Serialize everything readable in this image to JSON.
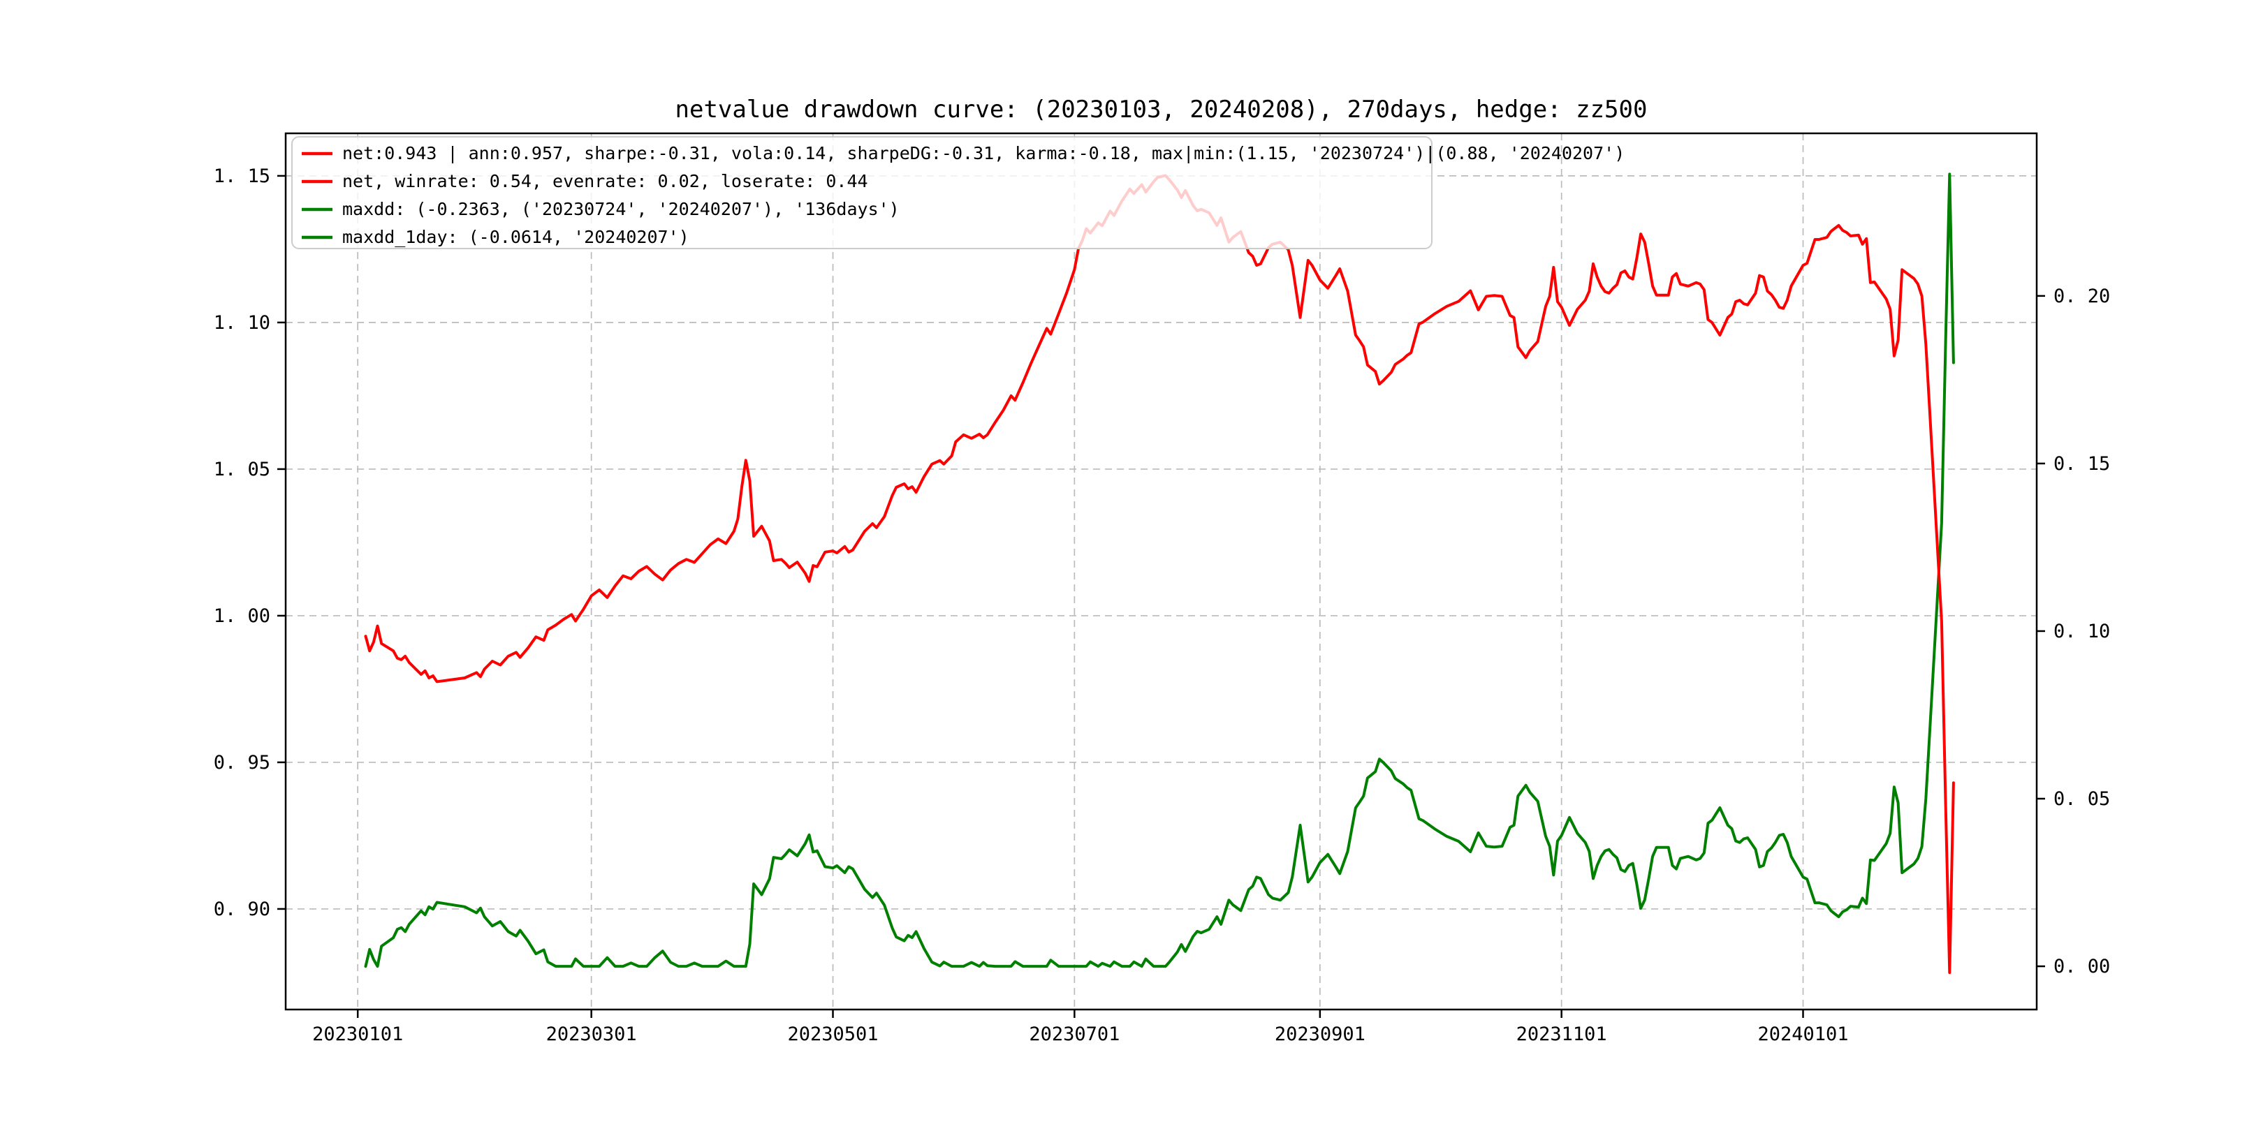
{
  "figure": {
    "title": "netvalue drawdown curve: (20230103, 20240208), 270days, hedge: zz500",
    "background": "#ffffff"
  },
  "colors": {
    "net_line": "#ff0000",
    "drawdown_line": "#008000",
    "grid": "#bbbbbb",
    "spine": "#000000",
    "legend_border": "#cccccc",
    "legend_bg_rgba": "rgba(255,255,255,0.8)"
  },
  "legend": {
    "items": [
      {
        "color": "#ff0000",
        "label": "net:0.943 | ann:0.957, sharpe:-0.31, vola:0.14, sharpeDG:-0.31, karma:-0.18, max|min:(1.15, '20230724')|(0.88, '20240207')"
      },
      {
        "color": "#ff0000",
        "label": "net, winrate: 0.54, evenrate: 0.02, loserate: 0.44"
      },
      {
        "color": "#008000",
        "label": "maxdd: (-0.2363, ('20230724', '20240207'), '136days')"
      },
      {
        "color": "#008000",
        "label": "maxdd_1day: (-0.0614, '20240207')"
      }
    ]
  },
  "axes": {
    "x": {
      "tick_labels": [
        "20230101",
        "20230301",
        "20230501",
        "20230701",
        "20230901",
        "20231101",
        "20240101"
      ],
      "tick_days": [
        0,
        59,
        120,
        181,
        243,
        304,
        365
      ],
      "lim_days": [
        -18.2,
        424.0
      ],
      "unit": "days since 2023-01-01"
    },
    "left": {
      "ticks": [
        1.15,
        1.1,
        1.05,
        1.0,
        0.95,
        0.9
      ],
      "labels": [
        "1. 15",
        "1. 10",
        "1. 05",
        "1. 00",
        "0. 95",
        "0. 90"
      ],
      "lim": [
        0.8657,
        1.1645
      ]
    },
    "right": {
      "ticks": [
        0.2,
        0.15,
        0.1,
        0.05,
        0.0
      ],
      "labels": [
        "0. 20",
        "0. 15",
        "0. 10",
        "0. 05",
        "0. 00"
      ],
      "lim": [
        -0.0129,
        0.2485
      ]
    }
  },
  "chart_data": {
    "type": "line",
    "title": "netvalue drawdown curve: (20230103, 20240208), 270days, hedge: zz500",
    "x_unit": "calendar days since 20230101",
    "date_range": [
      "20230103",
      "20240208"
    ],
    "stats": {
      "net_final": 0.943,
      "ann": 0.957,
      "sharpe": -0.31,
      "vola": 0.14,
      "sharpeDG": -0.31,
      "karma": -0.18,
      "max": [
        1.15,
        "20230724"
      ],
      "min": [
        0.88,
        "20240207"
      ],
      "winrate": 0.54,
      "evenrate": 0.02,
      "loserate": 0.44,
      "maxdd": [
        -0.2363,
        "20230724",
        "20240207",
        "136days"
      ],
      "maxdd_1day": [
        -0.0614,
        "20240207"
      ]
    },
    "series": [
      {
        "name": "net (left axis)",
        "color": "#ff0000",
        "points": [
          [
            2,
            0.993
          ],
          [
            3,
            0.988
          ],
          [
            4,
            0.991
          ],
          [
            5,
            0.9965
          ],
          [
            6,
            0.9905
          ],
          [
            9,
            0.988
          ],
          [
            10,
            0.9855
          ],
          [
            11,
            0.985
          ],
          [
            12,
            0.9862
          ],
          [
            13,
            0.984
          ],
          [
            16,
            0.98
          ],
          [
            17,
            0.9812
          ],
          [
            18,
            0.9788
          ],
          [
            19,
            0.9795
          ],
          [
            20,
            0.9775
          ],
          [
            27,
            0.9788
          ],
          [
            30,
            0.9806
          ],
          [
            31,
            0.9792
          ],
          [
            32,
            0.9818
          ],
          [
            34,
            0.9845
          ],
          [
            36,
            0.9832
          ],
          [
            38,
            0.9862
          ],
          [
            40,
            0.9875
          ],
          [
            41,
            0.9858
          ],
          [
            43,
            0.989
          ],
          [
            45,
            0.9928
          ],
          [
            47,
            0.9916
          ],
          [
            48,
            0.9952
          ],
          [
            50,
            0.9968
          ],
          [
            52,
            0.9988
          ],
          [
            54,
            1.0004
          ],
          [
            55,
            0.9982
          ],
          [
            57,
            1.0022
          ],
          [
            59,
            1.0068
          ],
          [
            61,
            1.0088
          ],
          [
            63,
            1.0062
          ],
          [
            65,
            1.0102
          ],
          [
            67,
            1.0136
          ],
          [
            69,
            1.0126
          ],
          [
            71,
            1.0152
          ],
          [
            73,
            1.0168
          ],
          [
            75,
            1.0142
          ],
          [
            77,
            1.0122
          ],
          [
            79,
            1.0156
          ],
          [
            81,
            1.0178
          ],
          [
            83,
            1.0192
          ],
          [
            85,
            1.0182
          ],
          [
            87,
            1.0212
          ],
          [
            89,
            1.0242
          ],
          [
            91,
            1.0262
          ],
          [
            93,
            1.0246
          ],
          [
            95,
            1.0288
          ],
          [
            96,
            1.033
          ],
          [
            97,
            1.044
          ],
          [
            98,
            1.053
          ],
          [
            99,
            1.046
          ],
          [
            100,
            1.0271
          ],
          [
            102,
            1.0305
          ],
          [
            104,
            1.0255
          ],
          [
            105,
            1.0188
          ],
          [
            107,
            1.0192
          ],
          [
            108,
            1.0179
          ],
          [
            109,
            1.0164
          ],
          [
            111,
            1.0183
          ],
          [
            113,
            1.0145
          ],
          [
            114,
            1.0117
          ],
          [
            115,
            1.0171
          ],
          [
            116,
            1.0167
          ],
          [
            118,
            1.0217
          ],
          [
            120,
            1.0221
          ],
          [
            121,
            1.0214
          ],
          [
            123,
            1.0236
          ],
          [
            124,
            1.0217
          ],
          [
            125,
            1.0224
          ],
          [
            128,
            1.0288
          ],
          [
            130,
            1.0314
          ],
          [
            131,
            1.03
          ],
          [
            133,
            1.0338
          ],
          [
            135,
            1.041
          ],
          [
            136,
            1.0438
          ],
          [
            138,
            1.045
          ],
          [
            139,
            1.0433
          ],
          [
            140,
            1.044
          ],
          [
            141,
            1.0421
          ],
          [
            143,
            1.0474
          ],
          [
            145,
            1.0517
          ],
          [
            147,
            1.0529
          ],
          [
            148,
            1.0517
          ],
          [
            150,
            1.0545
          ],
          [
            151,
            1.0593
          ],
          [
            153,
            1.0617
          ],
          [
            155,
            1.0605
          ],
          [
            157,
            1.0619
          ],
          [
            158,
            1.0607
          ],
          [
            159,
            1.0617
          ],
          [
            161,
            1.066
          ],
          [
            163,
            1.07
          ],
          [
            165,
            1.075
          ],
          [
            166,
            1.0735
          ],
          [
            168,
            1.0795
          ],
          [
            170,
            1.086
          ],
          [
            172,
            1.092
          ],
          [
            174,
            1.098
          ],
          [
            175,
            1.096
          ],
          [
            177,
            1.103
          ],
          [
            179,
            1.11
          ],
          [
            181,
            1.118
          ],
          [
            182,
            1.1252
          ],
          [
            183,
            1.128
          ],
          [
            184,
            1.132
          ],
          [
            185,
            1.1305
          ],
          [
            187,
            1.134
          ],
          [
            188,
            1.133
          ],
          [
            190,
            1.138
          ],
          [
            191,
            1.1365
          ],
          [
            193,
            1.1415
          ],
          [
            195,
            1.1455
          ],
          [
            196,
            1.144
          ],
          [
            198,
            1.147
          ],
          [
            199,
            1.1445
          ],
          [
            201,
            1.148
          ],
          [
            202,
            1.1495
          ],
          [
            204,
            1.1501
          ],
          [
            205,
            1.1486
          ],
          [
            207,
            1.1452
          ],
          [
            208,
            1.1426
          ],
          [
            209,
            1.145
          ],
          [
            211,
            1.1398
          ],
          [
            212,
            1.1381
          ],
          [
            213,
            1.1386
          ],
          [
            215,
            1.1374
          ],
          [
            217,
            1.1331
          ],
          [
            218,
            1.1357
          ],
          [
            220,
            1.1274
          ],
          [
            221,
            1.129
          ],
          [
            223,
            1.131
          ],
          [
            225,
            1.1238
          ],
          [
            226,
            1.1226
          ],
          [
            227,
            1.1195
          ],
          [
            228,
            1.12
          ],
          [
            230,
            1.1255
          ],
          [
            231,
            1.1267
          ],
          [
            233,
            1.1274
          ],
          [
            235,
            1.1248
          ],
          [
            236,
            1.1195
          ],
          [
            238,
            1.1017
          ],
          [
            240,
            1.1212
          ],
          [
            241,
            1.1195
          ],
          [
            243,
            1.1145
          ],
          [
            245,
            1.1117
          ],
          [
            247,
            1.116
          ],
          [
            248,
            1.1183
          ],
          [
            250,
            1.1107
          ],
          [
            252,
            1.0957
          ],
          [
            253,
            1.0938
          ],
          [
            254,
            1.0917
          ],
          [
            255,
            1.0855
          ],
          [
            257,
            1.0833
          ],
          [
            258,
            1.079
          ],
          [
            259,
            1.0802
          ],
          [
            261,
            1.083
          ],
          [
            262,
            1.0857
          ],
          [
            264,
            1.0875
          ],
          [
            265,
            1.0888
          ],
          [
            266,
            1.0897
          ],
          [
            268,
            1.0995
          ],
          [
            269,
            1.1001
          ],
          [
            272,
            1.103
          ],
          [
            275,
            1.1055
          ],
          [
            278,
            1.1072
          ],
          [
            281,
            1.1108
          ],
          [
            283,
            1.1043
          ],
          [
            285,
            1.1089
          ],
          [
            287,
            1.1092
          ],
          [
            289,
            1.1089
          ],
          [
            291,
            1.1024
          ],
          [
            292,
            1.1017
          ],
          [
            293,
            1.0917
          ],
          [
            295,
            1.088
          ],
          [
            296,
            1.0904
          ],
          [
            298,
            1.0935
          ],
          [
            300,
            1.1055
          ],
          [
            301,
            1.1089
          ],
          [
            302,
            1.1188
          ],
          [
            303,
            1.1071
          ],
          [
            304,
            1.1052
          ],
          [
            306,
            1.099
          ],
          [
            308,
            1.1045
          ],
          [
            310,
            1.1076
          ],
          [
            311,
            1.1107
          ],
          [
            312,
            1.12
          ],
          [
            313,
            1.1155
          ],
          [
            314,
            1.1124
          ],
          [
            315,
            1.1105
          ],
          [
            316,
            1.11
          ],
          [
            317,
            1.1117
          ],
          [
            318,
            1.1129
          ],
          [
            319,
            1.1169
          ],
          [
            320,
            1.1176
          ],
          [
            321,
            1.1155
          ],
          [
            322,
            1.1148
          ],
          [
            323,
            1.1219
          ],
          [
            324,
            1.1302
          ],
          [
            325,
            1.1274
          ],
          [
            326,
            1.1202
          ],
          [
            327,
            1.1124
          ],
          [
            328,
            1.1093
          ],
          [
            331,
            1.1093
          ],
          [
            332,
            1.1155
          ],
          [
            333,
            1.1167
          ],
          [
            334,
            1.1131
          ],
          [
            336,
            1.1124
          ],
          [
            338,
            1.1136
          ],
          [
            339,
            1.1131
          ],
          [
            340,
            1.1112
          ],
          [
            341,
            1.101
          ],
          [
            342,
            1.1
          ],
          [
            344,
            1.0957
          ],
          [
            346,
            1.1017
          ],
          [
            347,
            1.1029
          ],
          [
            348,
            1.1071
          ],
          [
            349,
            1.1076
          ],
          [
            350,
            1.1064
          ],
          [
            351,
            1.106
          ],
          [
            353,
            1.11
          ],
          [
            354,
            1.116
          ],
          [
            355,
            1.1155
          ],
          [
            356,
            1.1107
          ],
          [
            357,
            1.1095
          ],
          [
            358,
            1.1076
          ],
          [
            359,
            1.1052
          ],
          [
            360,
            1.1048
          ],
          [
            361,
            1.1076
          ],
          [
            362,
            1.1124
          ],
          [
            365,
            1.1195
          ],
          [
            366,
            1.1202
          ],
          [
            368,
            1.1283
          ],
          [
            369,
            1.1283
          ],
          [
            371,
            1.129
          ],
          [
            372,
            1.131
          ],
          [
            373,
            1.1321
          ],
          [
            374,
            1.1331
          ],
          [
            375,
            1.1314
          ],
          [
            376,
            1.1307
          ],
          [
            377,
            1.1295
          ],
          [
            379,
            1.1298
          ],
          [
            380,
            1.1267
          ],
          [
            381,
            1.1286
          ],
          [
            382,
            1.1136
          ],
          [
            383,
            1.1138
          ],
          [
            386,
            1.108
          ],
          [
            387,
            1.1045
          ],
          [
            388,
            1.0886
          ],
          [
            389,
            1.094
          ],
          [
            390,
            1.118
          ],
          [
            393,
            1.115
          ],
          [
            394,
            1.1131
          ],
          [
            395,
            1.109
          ],
          [
            396,
            1.0926
          ],
          [
            397,
            1.0695
          ],
          [
            400,
            0.998
          ],
          [
            401,
            0.9357
          ],
          [
            402,
            0.8783
          ],
          [
            403,
            0.943
          ]
        ]
      },
      {
        "name": "drawdown (right axis)",
        "color": "#008000",
        "derived_from": "net",
        "formula": "dd(i) = 1 - net(i) / runningMax(net[0..i])"
      }
    ]
  },
  "layout_note": ""
}
